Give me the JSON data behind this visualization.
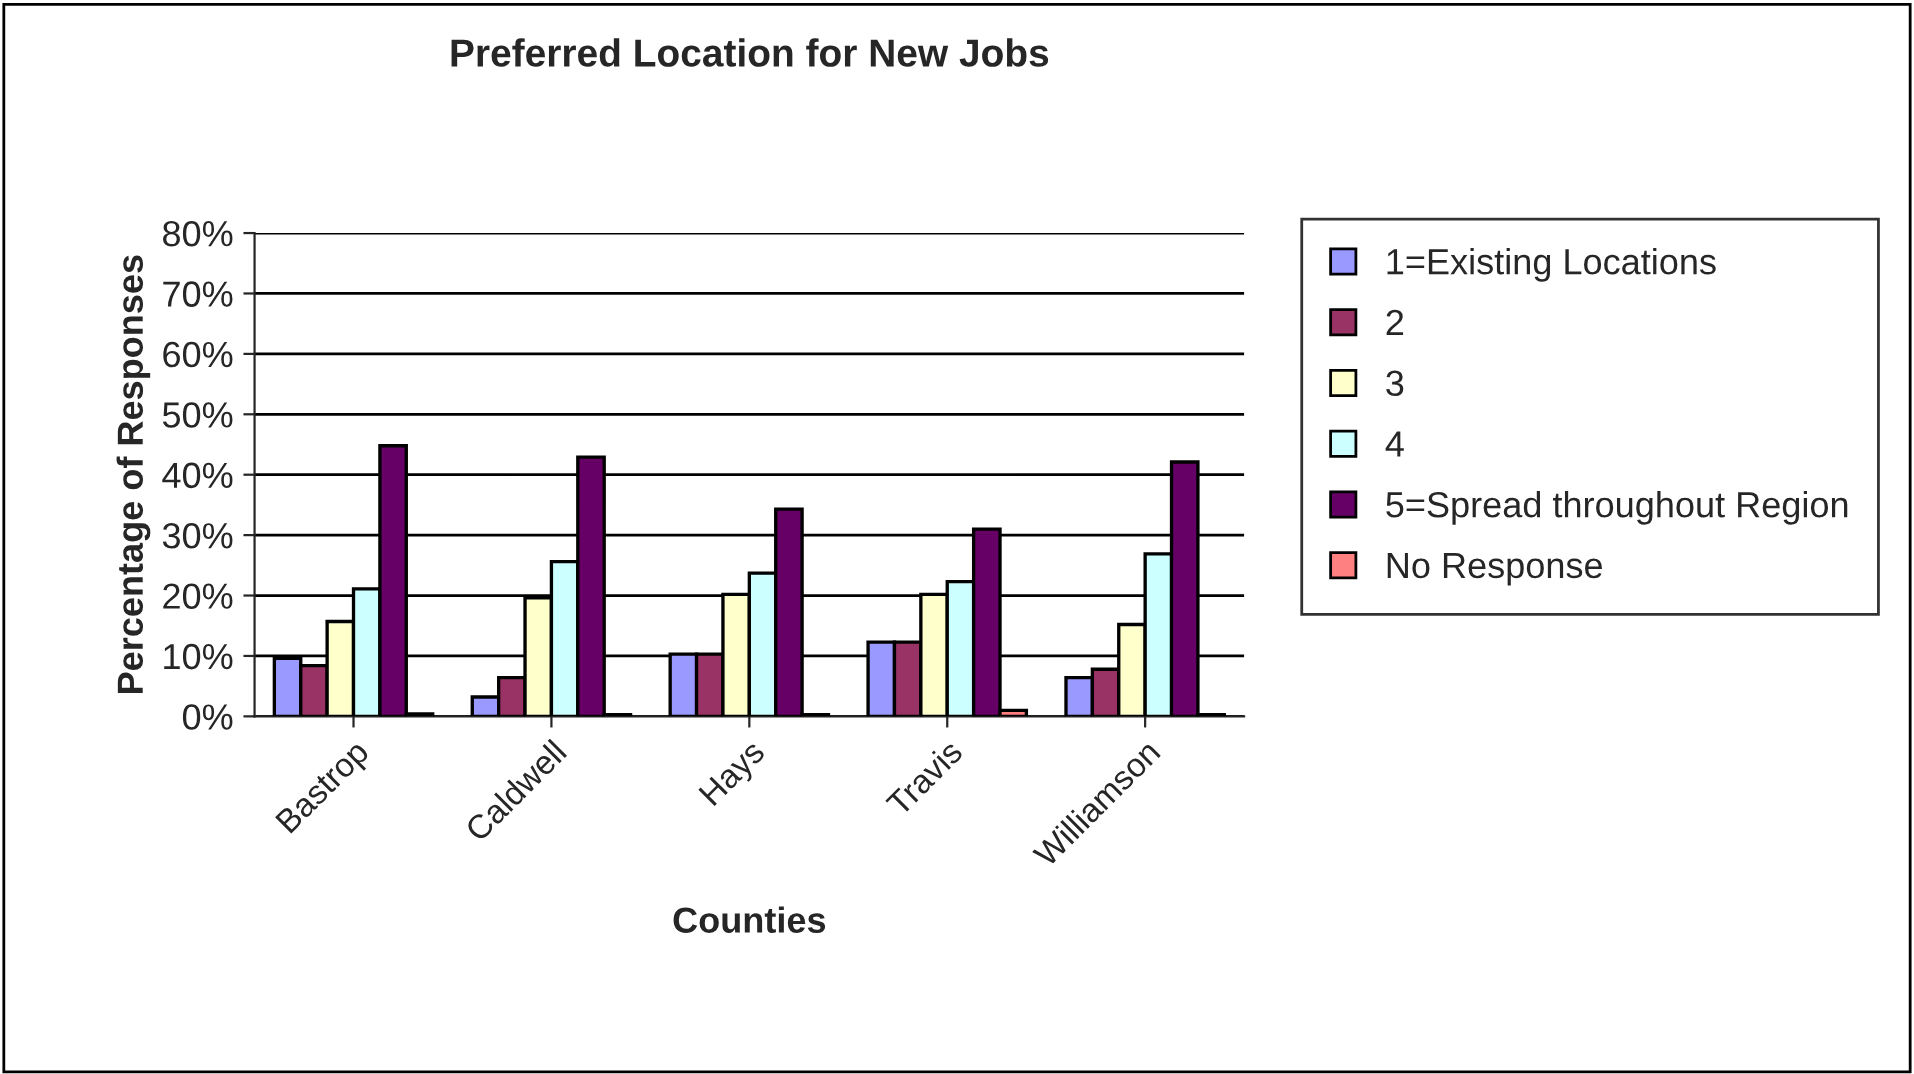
{
  "chart_data": {
    "type": "bar",
    "title": "Preferred Location for New Jobs",
    "xlabel": "Counties",
    "ylabel": "Percentage of Responses",
    "categories": [
      "Bastrop",
      "Caldwell",
      "Hays",
      "Travis",
      "Williamson"
    ],
    "series": [
      {
        "name": "1=Existing Locations",
        "color": "#9999ff",
        "values": [
          9.6,
          3.2,
          10.3,
          12.3,
          6.4
        ]
      },
      {
        "name": "2",
        "color": "#993366",
        "values": [
          8.4,
          6.4,
          10.3,
          12.3,
          7.8
        ]
      },
      {
        "name": "3",
        "color": "#ffffcc",
        "values": [
          15.7,
          19.6,
          20.2,
          20.2,
          15.2
        ]
      },
      {
        "name": "4",
        "color": "#ccffff",
        "values": [
          21.1,
          25.6,
          23.7,
          22.3,
          26.9
        ]
      },
      {
        "name": "5=Spread throughout Region",
        "color": "#660066",
        "values": [
          44.8,
          42.9,
          34.3,
          31.0,
          42.1
        ]
      },
      {
        "name": "No Response",
        "color": "#ff8080",
        "values": [
          0.4,
          0.3,
          0.3,
          1.0,
          0.3
        ]
      }
    ],
    "ylim": [
      0,
      80
    ],
    "yticks": [
      {
        "value": 0,
        "label": "0%"
      },
      {
        "value": 10,
        "label": "10%"
      },
      {
        "value": 20,
        "label": "20%"
      },
      {
        "value": 30,
        "label": "30%"
      },
      {
        "value": 40,
        "label": "40%"
      },
      {
        "value": 50,
        "label": "50%"
      },
      {
        "value": 60,
        "label": "60%"
      },
      {
        "value": 70,
        "label": "70%"
      },
      {
        "value": 80,
        "label": "80%"
      }
    ],
    "grid": "y",
    "legend": "right"
  }
}
